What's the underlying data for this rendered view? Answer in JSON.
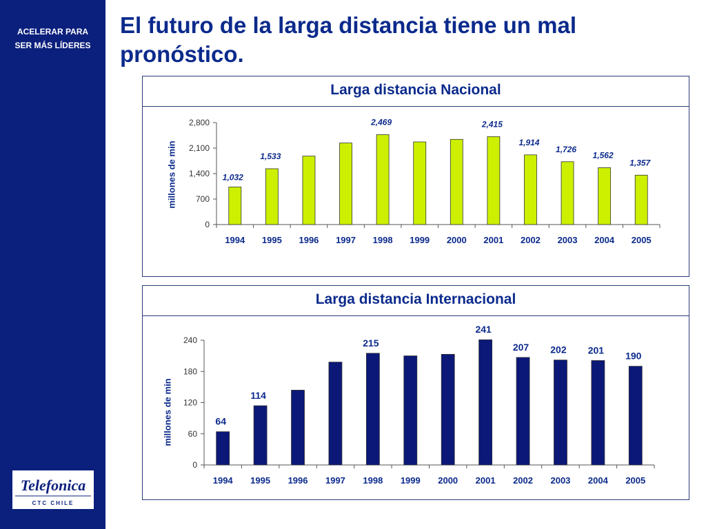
{
  "sidebar": {
    "tagline_line1": "ACELERAR PARA",
    "tagline_line2": "SER MÁS LÍDERES",
    "logo_brand": "Telefonica",
    "logo_sub": "CTC CHILE"
  },
  "page": {
    "title": "El futuro de la larga distancia tiene un mal pronóstico."
  },
  "colors": {
    "sidebar_bg": "#0b1f7c",
    "title": "#0b2a8c",
    "nacional_bar": "#ccf000",
    "internacional_bar": "#0b1878"
  },
  "chart_data": [
    {
      "type": "bar",
      "title": "Larga distancia Nacional",
      "ylabel": "millones de min",
      "xlabel": "",
      "categories": [
        "1994",
        "1995",
        "1996",
        "1997",
        "1998",
        "1999",
        "2000",
        "2001",
        "2002",
        "2003",
        "2004",
        "2005"
      ],
      "values": [
        1032,
        1533,
        1880,
        2240,
        2469,
        2270,
        2340,
        2415,
        1914,
        1726,
        1562,
        1357
      ],
      "data_labels": [
        "1,032",
        "1,533",
        "",
        "",
        "2,469",
        "",
        "",
        "2,415",
        "1,914",
        "1,726",
        "1,562",
        "1,357"
      ],
      "yticks": [
        "0",
        "700",
        "1,400",
        "2,100",
        "2,800"
      ],
      "ylim": [
        0,
        2800
      ],
      "grid": false,
      "legend": "none"
    },
    {
      "type": "bar",
      "title": "Larga distancia Internacional",
      "ylabel": "millones de min",
      "xlabel": "",
      "categories": [
        "1994",
        "1995",
        "1996",
        "1997",
        "1998",
        "1999",
        "2000",
        "2001",
        "2002",
        "2003",
        "2004",
        "2005"
      ],
      "values": [
        64,
        114,
        144,
        198,
        215,
        210,
        213,
        241,
        207,
        202,
        201,
        190
      ],
      "data_labels": [
        "64",
        "114",
        "",
        "",
        "215",
        "",
        "",
        "241",
        "207",
        "202",
        "201",
        "190"
      ],
      "yticks": [
        "0",
        "60",
        "120",
        "180",
        "240"
      ],
      "ylim": [
        0,
        240
      ],
      "grid": false,
      "legend": "none"
    }
  ]
}
